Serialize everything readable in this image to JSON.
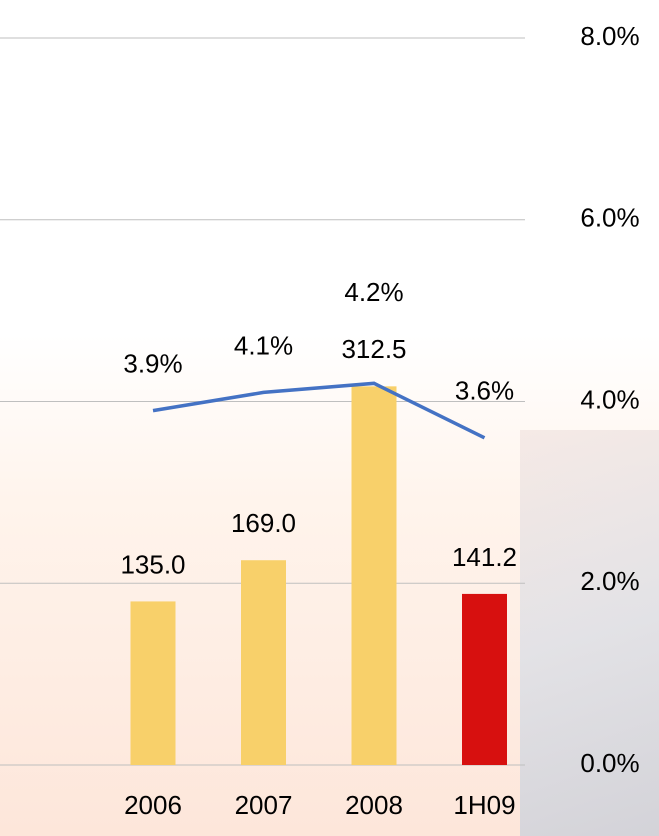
{
  "chart_data": {
    "type": "bar-line",
    "categories": [
      "2006",
      "2007",
      "2008",
      "1H09"
    ],
    "series": [
      {
        "type": "bar",
        "colors": [
          "#f8d06a",
          "#f8d06a",
          "#f8d06a",
          "#d7100f"
        ],
        "values": [
          135.0,
          169.0,
          312.5,
          141.2
        ],
        "value_labels": [
          "135.0",
          "169.0",
          "312.5",
          "141.2"
        ]
      },
      {
        "type": "line",
        "axis": "y2",
        "color": "#4472c4",
        "values": [
          3.9,
          4.1,
          4.2,
          3.6
        ],
        "value_labels": [
          "3.9%",
          "4.1%",
          "4.2%",
          "3.6%"
        ]
      }
    ],
    "ylim": [
      0,
      600
    ],
    "y2lim": [
      0,
      8
    ],
    "y2ticks": [
      {
        "value": 0,
        "label": "0.0%"
      },
      {
        "value": 2,
        "label": "2.0%"
      },
      {
        "value": 4,
        "label": "4.0%"
      },
      {
        "value": 6,
        "label": "6.0%"
      },
      {
        "value": 8,
        "label": "8.0%"
      }
    ],
    "grid": true
  }
}
